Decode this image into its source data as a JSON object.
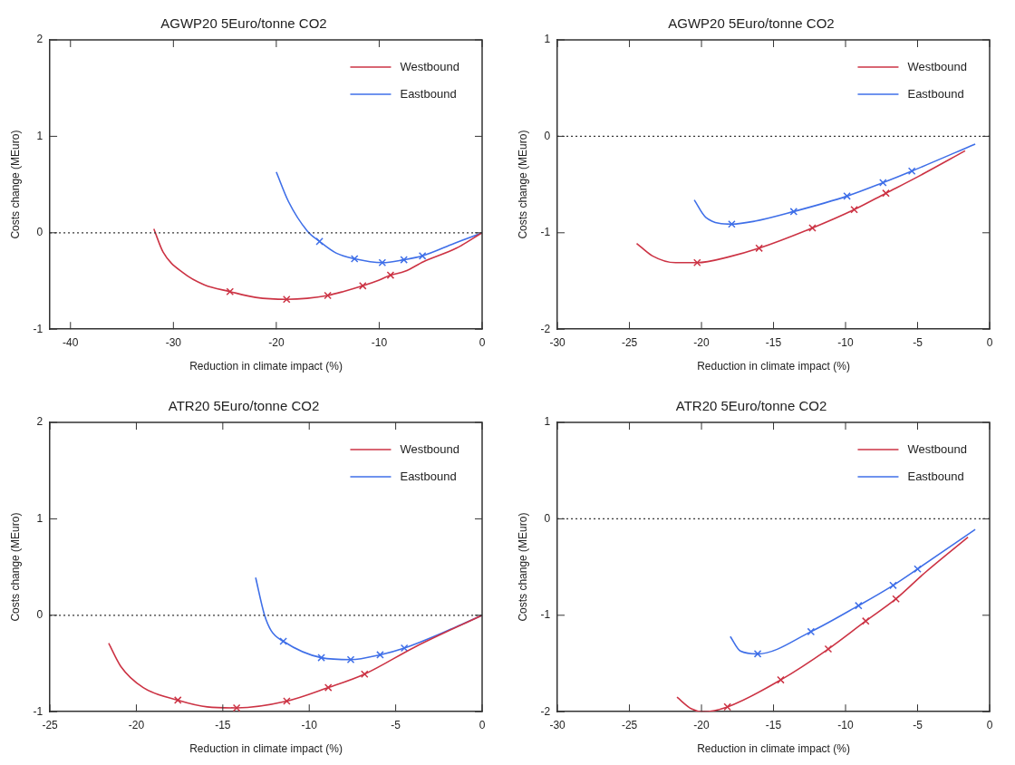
{
  "chart_data": [
    {
      "type": "line",
      "title": "AGWP20 5Euro/tonne CO2",
      "xlabel": "Reduction in climate impact (%)",
      "ylabel": "Costs change (MEuro)",
      "xlim": [
        -42,
        0
      ],
      "xticks": [
        -40,
        -30,
        -20,
        -10,
        0
      ],
      "ylim": [
        -1,
        2
      ],
      "yticks": [
        -1,
        0,
        1,
        2
      ],
      "grid": false,
      "legend": "top right",
      "marker": "none",
      "line_style": "solid",
      "ref_lines": [
        {
          "axis": "y",
          "value": 0,
          "line_style": "dotted"
        }
      ],
      "series": [
        {
          "name": "Westbound",
          "color": "#cc3344",
          "x": [
            -31.9,
            -31,
            -29,
            -27,
            -24.5,
            -22,
            -19,
            -17,
            -15,
            -13.5,
            -11.6,
            -10,
            -8.9,
            -7.5,
            -5.7,
            -2.5,
            0
          ],
          "values": [
            0.04,
            -0.2,
            -0.42,
            -0.54,
            -0.61,
            -0.67,
            -0.69,
            -0.68,
            -0.65,
            -0.61,
            -0.55,
            -0.49,
            -0.44,
            -0.4,
            -0.3,
            -0.16,
            0
          ]
        },
        {
          "name": "Eastbound",
          "color": "#3f6fe8",
          "x": [
            -20,
            -18.8,
            -17,
            -15.8,
            -14.2,
            -12.4,
            -9.7,
            -7.6,
            -5.8,
            -2.7,
            0
          ],
          "values": [
            0.63,
            0.32,
            0.02,
            -0.09,
            -0.21,
            -0.27,
            -0.31,
            -0.28,
            -0.24,
            -0.11,
            0
          ]
        },
        {
          "type": "scatter",
          "marker": "cross",
          "color": "#cc3344",
          "x": [
            -24.5,
            -19,
            -15,
            -11.6,
            -8.9
          ],
          "values": [
            -0.61,
            -0.69,
            -0.65,
            -0.55,
            -0.44
          ]
        },
        {
          "type": "scatter",
          "marker": "cross",
          "color": "#3f6fe8",
          "x": [
            -15.8,
            -12.4,
            -9.7,
            -7.6,
            -5.8
          ],
          "values": [
            -0.09,
            -0.27,
            -0.31,
            -0.28,
            -0.24
          ]
        }
      ]
    },
    {
      "type": "line",
      "title": "AGWP20 5Euro/tonne CO2",
      "xlabel": "Reduction in climate impact (%)",
      "ylabel": "Costs change (MEuro)",
      "xlim": [
        -30,
        0
      ],
      "xticks": [
        -30,
        -25,
        -20,
        -15,
        -10,
        -5,
        0
      ],
      "ylim": [
        -2,
        1
      ],
      "yticks": [
        -2,
        -1,
        0,
        1
      ],
      "grid": false,
      "legend": "top right",
      "marker": "none",
      "line_style": "solid",
      "ref_lines": [
        {
          "axis": "y",
          "value": 0,
          "line_style": "dotted"
        }
      ],
      "series": [
        {
          "name": "Westbound",
          "color": "#cc3344",
          "x": [
            -24.5,
            -23.4,
            -21.8,
            -20.3,
            -18.1,
            -16,
            -12.3,
            -9.4,
            -7.2,
            -5,
            -1.7
          ],
          "values": [
            -1.11,
            -1.24,
            -1.31,
            -1.31,
            -1.25,
            -1.16,
            -0.95,
            -0.76,
            -0.59,
            -0.42,
            -0.15
          ]
        },
        {
          "name": "Eastbound",
          "color": "#3f6fe8",
          "x": [
            -20.5,
            -19.7,
            -17.9,
            -16.3,
            -13.6,
            -9.9,
            -7.4,
            -5.4,
            -1
          ],
          "values": [
            -0.66,
            -0.84,
            -0.91,
            -0.88,
            -0.78,
            -0.62,
            -0.48,
            -0.36,
            -0.08
          ]
        },
        {
          "type": "scatter",
          "marker": "cross",
          "color": "#cc3344",
          "x": [
            -20.3,
            -16,
            -12.3,
            -9.4,
            -7.2
          ],
          "values": [
            -1.31,
            -1.16,
            -0.95,
            -0.76,
            -0.59
          ]
        },
        {
          "type": "scatter",
          "marker": "cross",
          "color": "#3f6fe8",
          "x": [
            -17.9,
            -13.6,
            -9.9,
            -7.4,
            -5.4
          ],
          "values": [
            -0.91,
            -0.78,
            -0.62,
            -0.48,
            -0.36
          ]
        }
      ]
    },
    {
      "type": "line",
      "title": "ATR20 5Euro/tonne CO2",
      "xlabel": "Reduction in climate impact (%)",
      "ylabel": "Costs change (MEuro)",
      "xlim": [
        -25,
        0
      ],
      "xticks": [
        -25,
        -20,
        -15,
        -10,
        -5,
        0
      ],
      "ylim": [
        -1,
        2
      ],
      "yticks": [
        -1,
        0,
        1,
        2
      ],
      "grid": false,
      "legend": "top right",
      "marker": "none",
      "line_style": "solid",
      "ref_lines": [
        {
          "axis": "y",
          "value": 0,
          "line_style": "dotted"
        }
      ],
      "series": [
        {
          "name": "Westbound",
          "color": "#cc3344",
          "x": [
            -21.6,
            -20.9,
            -19.6,
            -17.6,
            -15.9,
            -14.2,
            -11.3,
            -8.9,
            -6.8,
            -3.9,
            0
          ],
          "values": [
            -0.29,
            -0.53,
            -0.75,
            -0.88,
            -0.95,
            -0.96,
            -0.89,
            -0.75,
            -0.61,
            -0.33,
            0
          ]
        },
        {
          "name": "Eastbound",
          "color": "#3f6fe8",
          "x": [
            -13.1,
            -12.6,
            -12.2,
            -11.5,
            -9.3,
            -7.6,
            -5.9,
            -4.5,
            -2,
            0
          ],
          "values": [
            0.39,
            0.01,
            -0.16,
            -0.27,
            -0.44,
            -0.46,
            -0.41,
            -0.34,
            -0.16,
            0
          ]
        },
        {
          "type": "scatter",
          "marker": "cross",
          "color": "#cc3344",
          "x": [
            -17.6,
            -14.2,
            -11.3,
            -8.9,
            -6.8
          ],
          "values": [
            -0.88,
            -0.96,
            -0.89,
            -0.75,
            -0.61
          ]
        },
        {
          "type": "scatter",
          "marker": "cross",
          "color": "#3f6fe8",
          "x": [
            -11.5,
            -9.3,
            -7.6,
            -5.9,
            -4.5
          ],
          "values": [
            -0.27,
            -0.44,
            -0.46,
            -0.41,
            -0.34
          ]
        }
      ]
    },
    {
      "type": "line",
      "title": "ATR20 5Euro/tonne CO2",
      "xlabel": "Reduction in climate impact (%)",
      "ylabel": "Costs change (MEuro)",
      "xlim": [
        -30,
        0
      ],
      "xticks": [
        -30,
        -25,
        -20,
        -15,
        -10,
        -5,
        0
      ],
      "ylim": [
        -2,
        1
      ],
      "yticks": [
        -2,
        -1,
        0,
        1
      ],
      "grid": false,
      "legend": "top right",
      "marker": "none",
      "line_style": "solid",
      "ref_lines": [
        {
          "axis": "y",
          "value": 0,
          "line_style": "dotted"
        }
      ],
      "series": [
        {
          "name": "Westbound",
          "color": "#cc3344",
          "x": [
            -21.7,
            -20.7,
            -19.9,
            -18.2,
            -14.5,
            -11.2,
            -8.6,
            -6.5,
            -4.5,
            -1.5
          ],
          "values": [
            -1.85,
            -1.97,
            -2,
            -1.95,
            -1.67,
            -1.35,
            -1.06,
            -0.83,
            -0.56,
            -0.19
          ]
        },
        {
          "name": "Eastbound",
          "color": "#3f6fe8",
          "x": [
            -18,
            -17.3,
            -16.1,
            -12.4,
            -9.1,
            -6.7,
            -5,
            -1
          ],
          "values": [
            -1.22,
            -1.37,
            -1.4,
            -1.17,
            -0.9,
            -0.69,
            -0.52,
            -0.11
          ]
        },
        {
          "type": "scatter",
          "marker": "cross",
          "color": "#cc3344",
          "x": [
            -18.2,
            -14.5,
            -11.2,
            -8.6,
            -6.5
          ],
          "values": [
            -1.95,
            -1.67,
            -1.35,
            -1.06,
            -0.83
          ]
        },
        {
          "type": "scatter",
          "marker": "cross",
          "color": "#3f6fe8",
          "x": [
            -16.1,
            -12.4,
            -9.1,
            -6.7,
            -5
          ],
          "values": [
            -1.4,
            -1.17,
            -0.9,
            -0.69,
            -0.52
          ]
        }
      ]
    }
  ]
}
